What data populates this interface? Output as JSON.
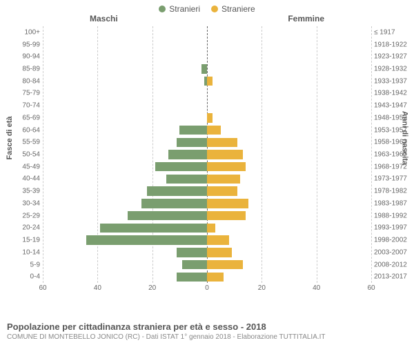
{
  "legend": {
    "male": {
      "label": "Stranieri",
      "color": "#7a9e6f"
    },
    "female": {
      "label": "Straniere",
      "color": "#eab33c"
    }
  },
  "columns": {
    "left": "Maschi",
    "right": "Femmine"
  },
  "axes": {
    "left_label": "Fasce di età",
    "right_label": "Anni di nascita",
    "x_max": 60,
    "x_ticks": [
      60,
      40,
      20,
      0,
      20,
      40,
      60
    ],
    "grid_color": "#cccccc",
    "center_color": "#666666"
  },
  "rows": [
    {
      "age": "100+",
      "birth": "≤ 1917",
      "m": 0,
      "f": 0
    },
    {
      "age": "95-99",
      "birth": "1918-1922",
      "m": 0,
      "f": 0
    },
    {
      "age": "90-94",
      "birth": "1923-1927",
      "m": 0,
      "f": 0
    },
    {
      "age": "85-89",
      "birth": "1928-1932",
      "m": 2,
      "f": 0
    },
    {
      "age": "80-84",
      "birth": "1933-1937",
      "m": 1,
      "f": 2
    },
    {
      "age": "75-79",
      "birth": "1938-1942",
      "m": 0,
      "f": 0
    },
    {
      "age": "70-74",
      "birth": "1943-1947",
      "m": 0,
      "f": 0
    },
    {
      "age": "65-69",
      "birth": "1948-1952",
      "m": 0,
      "f": 2
    },
    {
      "age": "60-64",
      "birth": "1953-1957",
      "m": 10,
      "f": 5
    },
    {
      "age": "55-59",
      "birth": "1958-1962",
      "m": 11,
      "f": 11
    },
    {
      "age": "50-54",
      "birth": "1963-1967",
      "m": 14,
      "f": 13
    },
    {
      "age": "45-49",
      "birth": "1968-1972",
      "m": 19,
      "f": 14
    },
    {
      "age": "40-44",
      "birth": "1973-1977",
      "m": 15,
      "f": 12
    },
    {
      "age": "35-39",
      "birth": "1978-1982",
      "m": 22,
      "f": 11
    },
    {
      "age": "30-34",
      "birth": "1983-1987",
      "m": 24,
      "f": 15
    },
    {
      "age": "25-29",
      "birth": "1988-1992",
      "m": 29,
      "f": 14
    },
    {
      "age": "20-24",
      "birth": "1993-1997",
      "m": 39,
      "f": 3
    },
    {
      "age": "15-19",
      "birth": "1998-2002",
      "m": 44,
      "f": 8
    },
    {
      "age": "10-14",
      "birth": "2003-2007",
      "m": 11,
      "f": 9
    },
    {
      "age": "5-9",
      "birth": "2008-2012",
      "m": 9,
      "f": 13
    },
    {
      "age": "0-4",
      "birth": "2013-2017",
      "m": 11,
      "f": 6
    }
  ],
  "footer": {
    "title": "Popolazione per cittadinanza straniera per età e sesso - 2018",
    "subtitle": "COMUNE DI MONTEBELLO JONICO (RC) - Dati ISTAT 1° gennaio 2018 - Elaborazione TUTTITALIA.IT"
  },
  "style": {
    "background": "#ffffff",
    "label_fontsize": 10,
    "title_fontsize": 13,
    "subtitle_fontsize": 10
  }
}
